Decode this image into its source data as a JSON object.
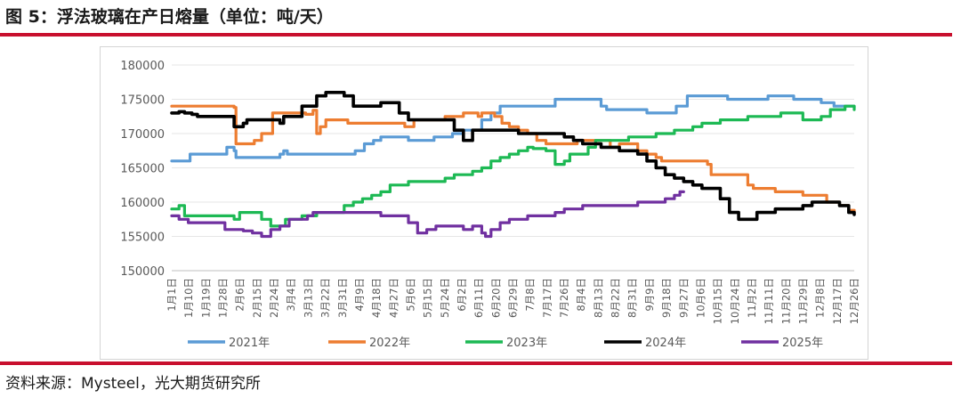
{
  "header": {
    "title": "图 5：浮法玻璃在产日熔量（单位：吨/天）"
  },
  "footer": {
    "source": "资料来源：Mysteel，光大期货研究所"
  },
  "colors": {
    "rule": "#c8102e",
    "s2021": "#5b9bd5",
    "s2022": "#ed7d31",
    "s2023": "#1db954",
    "s2024": "#000000",
    "s2025": "#7030a0"
  },
  "chart_data": {
    "type": "line",
    "ylim": [
      150000,
      180000
    ],
    "yticks": [
      150000,
      155000,
      160000,
      165000,
      170000,
      175000,
      180000
    ],
    "ytick_labels": [
      "150000",
      "155000",
      "160000",
      "165000",
      "170000",
      "175000",
      "180000"
    ],
    "x_labels": [
      "1月1日",
      "1月10日",
      "1月19日",
      "1月28日",
      "2月6日",
      "2月15日",
      "2月24日",
      "3月4日",
      "3月13日",
      "3月22日",
      "3月31日",
      "4月9日",
      "4月18日",
      "4月27日",
      "5月6日",
      "5月15日",
      "5月24日",
      "6月2日",
      "6月11日",
      "6月20日",
      "6月29日",
      "7月8日",
      "7月17日",
      "7月26日",
      "8月4日",
      "8月13日",
      "8月22日",
      "8月31日",
      "9月9日",
      "9月18日",
      "9月27日",
      "10月6日",
      "10月15日",
      "10月24日",
      "11月2日",
      "11月11日",
      "11月20日",
      "11月29日",
      "12月8日",
      "12月17日",
      "12月26日"
    ],
    "legend_position": "bottom",
    "series": [
      {
        "name": "2021年",
        "color": "#5b9bd5",
        "points": [
          [
            1,
            166000
          ],
          [
            10,
            166000
          ],
          [
            11,
            167000
          ],
          [
            30,
            167000
          ],
          [
            31,
            168000
          ],
          [
            35,
            167500
          ],
          [
            36,
            166500
          ],
          [
            59,
            166500
          ],
          [
            60,
            167000
          ],
          [
            62,
            167500
          ],
          [
            64,
            167000
          ],
          [
            100,
            167000
          ],
          [
            101,
            167500
          ],
          [
            105,
            167500
          ],
          [
            106,
            168500
          ],
          [
            110,
            168500
          ],
          [
            111,
            169000
          ],
          [
            115,
            169500
          ],
          [
            125,
            169500
          ],
          [
            130,
            169000
          ],
          [
            140,
            169000
          ],
          [
            144,
            169500
          ],
          [
            152,
            169500
          ],
          [
            154,
            170000
          ],
          [
            160,
            170500
          ],
          [
            170,
            172000
          ],
          [
            175,
            173000
          ],
          [
            180,
            174000
          ],
          [
            205,
            174000
          ],
          [
            210,
            175000
          ],
          [
            230,
            175000
          ],
          [
            235,
            174000
          ],
          [
            238,
            173500
          ],
          [
            255,
            173500
          ],
          [
            260,
            173000
          ],
          [
            272,
            173000
          ],
          [
            276,
            174000
          ],
          [
            282,
            175500
          ],
          [
            300,
            175500
          ],
          [
            304,
            175000
          ],
          [
            320,
            175000
          ],
          [
            326,
            175500
          ],
          [
            335,
            175500
          ],
          [
            340,
            175000
          ],
          [
            348,
            175000
          ],
          [
            355,
            174500
          ],
          [
            362,
            174000
          ],
          [
            370,
            174000
          ],
          [
            373,
            173800
          ]
        ]
      },
      {
        "name": "2022年",
        "color": "#ed7d31",
        "points": [
          [
            1,
            174000
          ],
          [
            10,
            174000
          ],
          [
            20,
            174000
          ],
          [
            30,
            174000
          ],
          [
            35,
            173800
          ],
          [
            36,
            168500
          ],
          [
            42,
            168500
          ],
          [
            46,
            169000
          ],
          [
            50,
            170000
          ],
          [
            55,
            170000
          ],
          [
            56,
            173000
          ],
          [
            70,
            173000
          ],
          [
            74,
            172800
          ],
          [
            78,
            173400
          ],
          [
            80,
            170000
          ],
          [
            82,
            171000
          ],
          [
            85,
            172000
          ],
          [
            95,
            172000
          ],
          [
            97,
            171500
          ],
          [
            120,
            171500
          ],
          [
            128,
            171000
          ],
          [
            130,
            171000
          ],
          [
            133,
            172000
          ],
          [
            150,
            172500
          ],
          [
            160,
            173000
          ],
          [
            165,
            173000
          ],
          [
            168,
            172500
          ],
          [
            170,
            173000
          ],
          [
            172,
            173000
          ],
          [
            177,
            172500
          ],
          [
            181,
            171500
          ],
          [
            185,
            171000
          ],
          [
            190,
            170500
          ],
          [
            195,
            170000
          ],
          [
            200,
            169000
          ],
          [
            205,
            168500
          ],
          [
            215,
            168500
          ],
          [
            222,
            169000
          ],
          [
            235,
            169000
          ],
          [
            240,
            168000
          ],
          [
            245,
            168500
          ],
          [
            255,
            167500
          ],
          [
            260,
            167000
          ],
          [
            265,
            166500
          ],
          [
            268,
            166000
          ],
          [
            280,
            166000
          ],
          [
            290,
            166000
          ],
          [
            293,
            165500
          ],
          [
            295,
            164000
          ],
          [
            305,
            164000
          ],
          [
            315,
            162500
          ],
          [
            318,
            162000
          ],
          [
            330,
            161500
          ],
          [
            340,
            161500
          ],
          [
            345,
            161000
          ],
          [
            355,
            161000
          ],
          [
            358,
            160000
          ],
          [
            365,
            159500
          ],
          [
            370,
            158800
          ],
          [
            373,
            158500
          ]
        ]
      },
      {
        "name": "2023年",
        "color": "#1db954",
        "points": [
          [
            1,
            159000
          ],
          [
            5,
            159500
          ],
          [
            8,
            158000
          ],
          [
            30,
            158000
          ],
          [
            35,
            157500
          ],
          [
            38,
            158500
          ],
          [
            45,
            158500
          ],
          [
            50,
            157500
          ],
          [
            55,
            156500
          ],
          [
            60,
            156500
          ],
          [
            63,
            157500
          ],
          [
            70,
            157500
          ],
          [
            72,
            158000
          ],
          [
            80,
            158500
          ],
          [
            90,
            158500
          ],
          [
            95,
            159500
          ],
          [
            100,
            160000
          ],
          [
            105,
            160500
          ],
          [
            110,
            161000
          ],
          [
            115,
            161500
          ],
          [
            120,
            162500
          ],
          [
            125,
            162500
          ],
          [
            130,
            163000
          ],
          [
            140,
            163000
          ],
          [
            145,
            163000
          ],
          [
            150,
            163500
          ],
          [
            155,
            164000
          ],
          [
            160,
            164000
          ],
          [
            165,
            164500
          ],
          [
            170,
            165000
          ],
          [
            175,
            166000
          ],
          [
            180,
            166500
          ],
          [
            185,
            167000
          ],
          [
            190,
            167500
          ],
          [
            195,
            168000
          ],
          [
            198,
            167800
          ],
          [
            205,
            167500
          ],
          [
            210,
            165500
          ],
          [
            215,
            166000
          ],
          [
            218,
            167000
          ],
          [
            222,
            167000
          ],
          [
            228,
            168000
          ],
          [
            232,
            169000
          ],
          [
            240,
            169000
          ],
          [
            245,
            169000
          ],
          [
            250,
            169500
          ],
          [
            260,
            169500
          ],
          [
            265,
            170000
          ],
          [
            275,
            170500
          ],
          [
            280,
            170500
          ],
          [
            285,
            171000
          ],
          [
            290,
            171500
          ],
          [
            295,
            171500
          ],
          [
            300,
            172000
          ],
          [
            310,
            172000
          ],
          [
            315,
            172500
          ],
          [
            330,
            172500
          ],
          [
            333,
            173000
          ],
          [
            340,
            173000
          ],
          [
            345,
            172000
          ],
          [
            350,
            172000
          ],
          [
            355,
            172500
          ],
          [
            358,
            172500
          ],
          [
            360,
            173500
          ],
          [
            365,
            173500
          ],
          [
            368,
            174000
          ],
          [
            373,
            173500
          ]
        ]
      },
      {
        "name": "2024年",
        "color": "#000000",
        "points": [
          [
            1,
            173000
          ],
          [
            5,
            173200
          ],
          [
            8,
            173000
          ],
          [
            12,
            172800
          ],
          [
            15,
            172500
          ],
          [
            30,
            172500
          ],
          [
            35,
            171000
          ],
          [
            40,
            171500
          ],
          [
            42,
            172000
          ],
          [
            55,
            172000
          ],
          [
            60,
            171500
          ],
          [
            62,
            172500
          ],
          [
            70,
            172500
          ],
          [
            72,
            174000
          ],
          [
            75,
            174000
          ],
          [
            80,
            175500
          ],
          [
            85,
            176000
          ],
          [
            90,
            176000
          ],
          [
            95,
            175500
          ],
          [
            100,
            174000
          ],
          [
            110,
            174000
          ],
          [
            115,
            174500
          ],
          [
            120,
            174500
          ],
          [
            125,
            173000
          ],
          [
            130,
            172000
          ],
          [
            150,
            172000
          ],
          [
            155,
            170500
          ],
          [
            160,
            169000
          ],
          [
            165,
            170500
          ],
          [
            175,
            170500
          ],
          [
            185,
            170500
          ],
          [
            190,
            170000
          ],
          [
            195,
            170000
          ],
          [
            200,
            170000
          ],
          [
            210,
            170000
          ],
          [
            215,
            169500
          ],
          [
            220,
            169000
          ],
          [
            225,
            168500
          ],
          [
            235,
            168000
          ],
          [
            245,
            167500
          ],
          [
            250,
            167500
          ],
          [
            255,
            167000
          ],
          [
            260,
            166000
          ],
          [
            265,
            165000
          ],
          [
            270,
            164000
          ],
          [
            275,
            163500
          ],
          [
            280,
            163000
          ],
          [
            285,
            162500
          ],
          [
            290,
            162000
          ],
          [
            295,
            162000
          ],
          [
            300,
            160500
          ],
          [
            305,
            158500
          ],
          [
            310,
            157500
          ],
          [
            315,
            157500
          ],
          [
            320,
            158500
          ],
          [
            325,
            158500
          ],
          [
            330,
            159000
          ],
          [
            340,
            159000
          ],
          [
            345,
            159500
          ],
          [
            350,
            160000
          ],
          [
            355,
            160000
          ],
          [
            360,
            160000
          ],
          [
            365,
            159500
          ],
          [
            370,
            158500
          ],
          [
            373,
            158200
          ]
        ]
      },
      {
        "name": "2025年",
        "color": "#7030a0",
        "points": [
          [
            1,
            158000
          ],
          [
            5,
            157500
          ],
          [
            10,
            157000
          ],
          [
            25,
            157000
          ],
          [
            30,
            156000
          ],
          [
            40,
            155800
          ],
          [
            45,
            155500
          ],
          [
            50,
            155000
          ],
          [
            55,
            156000
          ],
          [
            60,
            156500
          ],
          [
            65,
            157500
          ],
          [
            70,
            157500
          ],
          [
            75,
            158000
          ],
          [
            78,
            158500
          ],
          [
            90,
            158500
          ],
          [
            100,
            158500
          ],
          [
            110,
            158500
          ],
          [
            115,
            158000
          ],
          [
            125,
            158000
          ],
          [
            130,
            157000
          ],
          [
            135,
            155500
          ],
          [
            140,
            156000
          ],
          [
            145,
            156500
          ],
          [
            155,
            156500
          ],
          [
            160,
            156000
          ],
          [
            165,
            156500
          ],
          [
            170,
            155500
          ],
          [
            172,
            155000
          ],
          [
            175,
            156000
          ],
          [
            180,
            157000
          ],
          [
            185,
            157500
          ],
          [
            190,
            157500
          ],
          [
            195,
            158000
          ],
          [
            205,
            158000
          ],
          [
            210,
            158500
          ],
          [
            215,
            159000
          ],
          [
            220,
            159000
          ],
          [
            225,
            159500
          ],
          [
            240,
            159500
          ],
          [
            250,
            159500
          ],
          [
            255,
            160000
          ],
          [
            265,
            160000
          ],
          [
            270,
            160500
          ],
          [
            275,
            161000
          ],
          [
            278,
            161500
          ],
          [
            280,
            161500
          ]
        ]
      }
    ]
  }
}
